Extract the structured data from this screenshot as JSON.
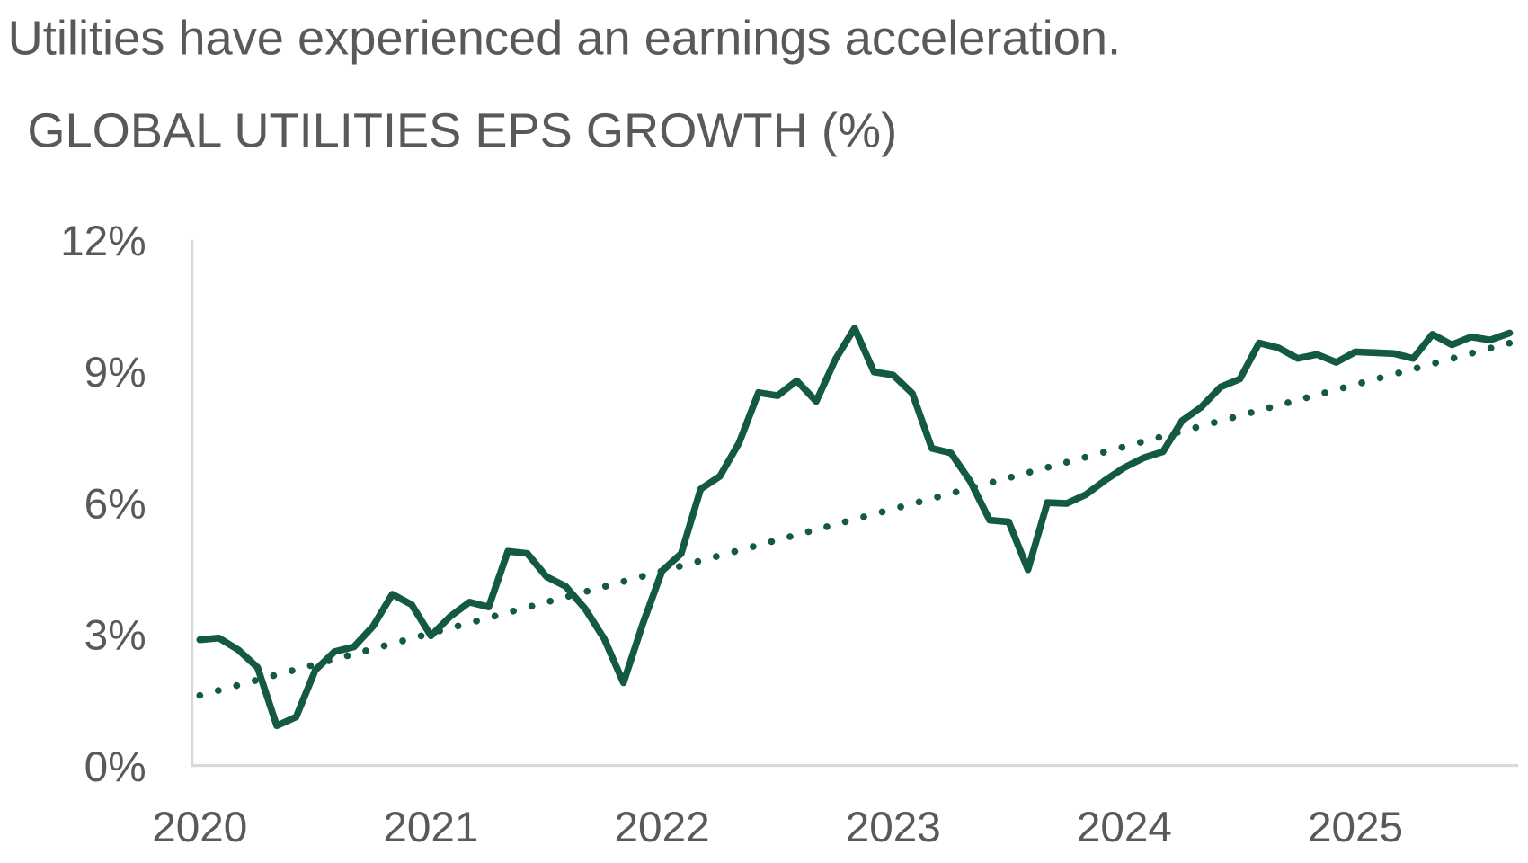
{
  "chart_data": {
    "type": "line",
    "title": "Utilities have experienced an earnings acceleration.",
    "subtitle": "GLOBAL UTILITIES EPS GROWTH (%)",
    "x": [
      2020.0,
      2020.083,
      2020.167,
      2020.25,
      2020.333,
      2020.417,
      2020.5,
      2020.583,
      2020.667,
      2020.75,
      2020.833,
      2020.917,
      2021.0,
      2021.083,
      2021.167,
      2021.25,
      2021.333,
      2021.417,
      2021.5,
      2021.583,
      2021.667,
      2021.75,
      2021.833,
      2021.917,
      2022.0,
      2022.083,
      2022.167,
      2022.25,
      2022.333,
      2022.417,
      2022.5,
      2022.583,
      2022.667,
      2022.75,
      2022.833,
      2022.917,
      2023.0,
      2023.083,
      2023.167,
      2023.25,
      2023.333,
      2023.417,
      2023.5,
      2023.583,
      2023.667,
      2023.75,
      2023.833,
      2023.917,
      2024.0,
      2024.083,
      2024.167,
      2024.25,
      2024.333,
      2024.417,
      2024.5,
      2024.583,
      2024.667,
      2024.75,
      2024.833,
      2024.917,
      2025.0,
      2025.083,
      2025.167,
      2025.25,
      2025.333,
      2025.417,
      2025.5,
      2025.583,
      2025.667
    ],
    "series": [
      {
        "color": "#145a40",
        "style": "solid",
        "values": [
          2.87,
          2.91,
          2.64,
          2.24,
          0.91,
          1.11,
          2.18,
          2.6,
          2.71,
          3.18,
          3.91,
          3.67,
          2.96,
          3.4,
          3.73,
          3.62,
          4.89,
          4.84,
          4.31,
          4.09,
          3.58,
          2.89,
          1.89,
          3.24,
          4.44,
          4.84,
          6.31,
          6.6,
          7.36,
          8.51,
          8.44,
          8.78,
          8.31,
          9.27,
          9.98,
          8.98,
          8.91,
          8.49,
          7.24,
          7.13,
          6.49,
          5.6,
          5.56,
          4.47,
          6.0,
          5.98,
          6.18,
          6.51,
          6.8,
          7.02,
          7.16,
          7.87,
          8.18,
          8.64,
          8.82,
          9.64,
          9.53,
          9.29,
          9.38,
          9.2,
          9.44,
          9.42,
          9.4,
          9.29,
          9.84,
          9.6,
          9.78,
          9.71,
          9.87
        ]
      },
      {
        "color": "#145a40",
        "style": "dotted",
        "x": [
          2020.0,
          2025.667
        ],
        "values": [
          1.6,
          9.64
        ]
      }
    ],
    "xlim": [
      2020,
      2025.7
    ],
    "xticks": [
      2020,
      2021,
      2022,
      2023,
      2024,
      2025
    ],
    "ylim": [
      0,
      12
    ],
    "yticks": [
      {
        "value": 0,
        "label": "0%"
      },
      {
        "value": 3,
        "label": "3%"
      },
      {
        "value": 6,
        "label": "6%"
      },
      {
        "value": 9,
        "label": "9%"
      },
      {
        "value": 12,
        "label": "12%"
      }
    ],
    "grid": false
  }
}
